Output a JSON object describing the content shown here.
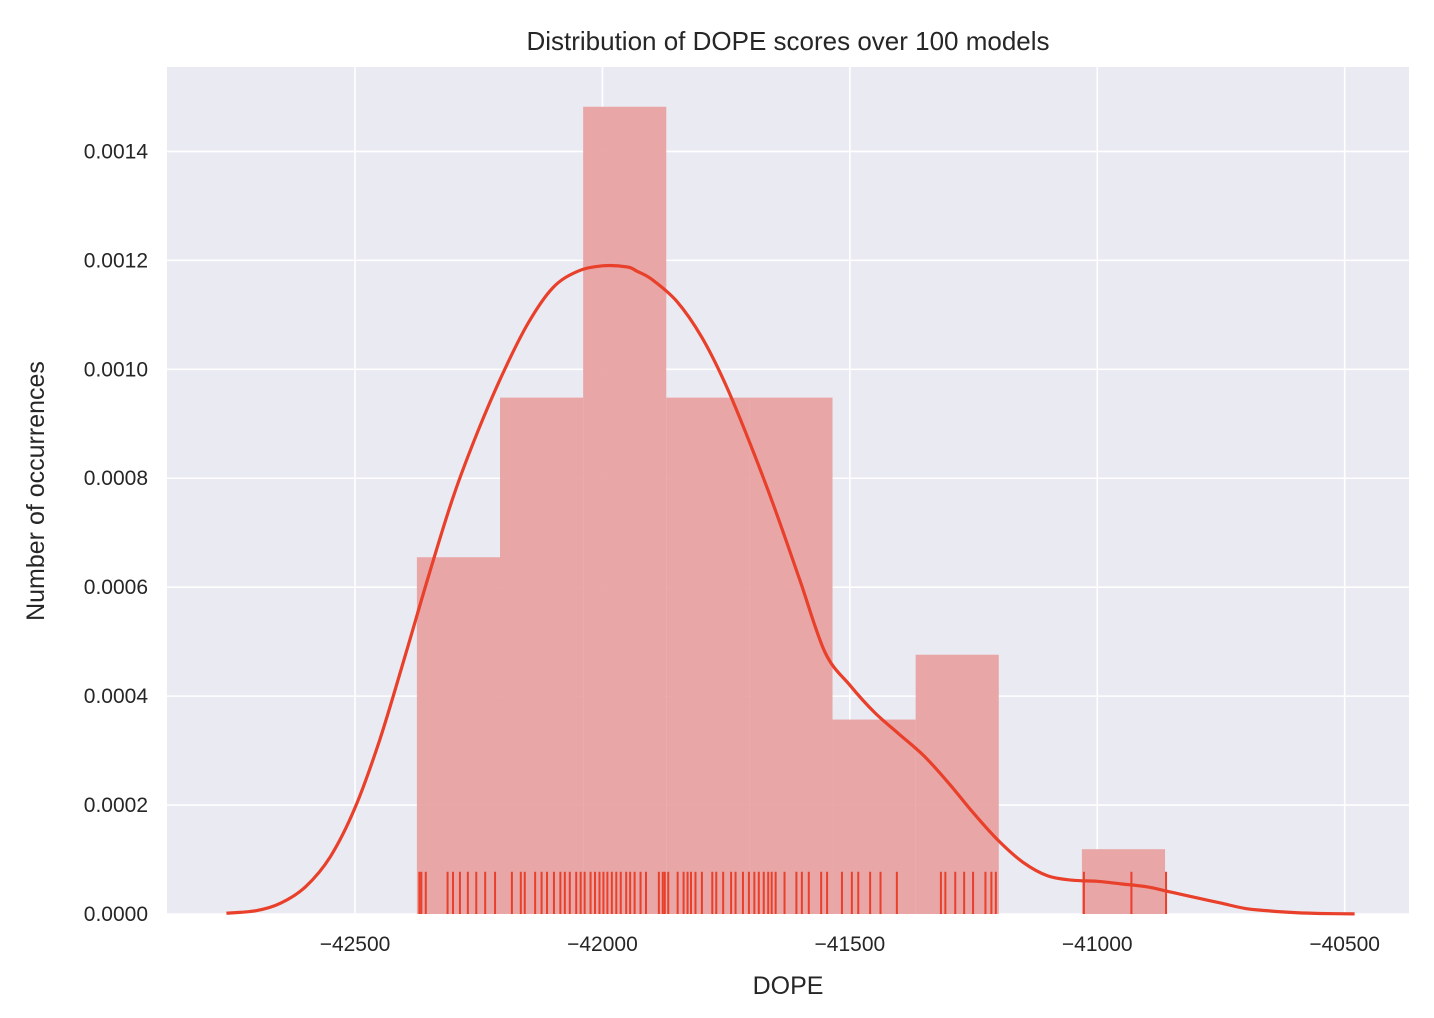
{
  "chart_data": {
    "type": "histogram",
    "title": "Distribution of DOPE scores over 100 models",
    "xlabel": "DOPE",
    "ylabel": "Number of occurrences",
    "xlim": [
      -42880,
      -40370
    ],
    "ylim": [
      0,
      0.001555
    ],
    "x_ticks": [
      -42500,
      -42000,
      -41500,
      -41000,
      -40500
    ],
    "x_tick_labels": [
      "−42500",
      "−42000",
      "−41500",
      "−41000",
      "−40500"
    ],
    "y_ticks": [
      0,
      0.0002,
      0.0004,
      0.0006,
      0.0008,
      0.001,
      0.0012,
      0.0014
    ],
    "y_tick_labels": [
      "0.0000",
      "0.0002",
      "0.0004",
      "0.0006",
      "0.0008",
      "0.0010",
      "0.0012",
      "0.0014"
    ],
    "grid": true,
    "colors": {
      "plot_background": "#eaeaf2",
      "grid": "#ffffff",
      "bar_fill": "#e8a0a0",
      "kde_line": "#e8402a",
      "rug": "#e8402a"
    },
    "histogram": {
      "bin_edges": [
        -42375,
        -42207,
        -42039,
        -41871,
        -41703,
        -41535,
        -41367,
        -41199,
        -41031,
        -40863
      ],
      "density": [
        0.000655,
        0.000948,
        0.001482,
        0.000948,
        0.000948,
        0.000357,
        0.000476,
        0.0,
        0.000119
      ]
    },
    "kde": {
      "x": [
        -42760,
        -42700,
        -42650,
        -42600,
        -42550,
        -42500,
        -42450,
        -42400,
        -42350,
        -42300,
        -42250,
        -42200,
        -42150,
        -42100,
        -42050,
        -42000,
        -41950,
        -41930,
        -41900,
        -41850,
        -41800,
        -41750,
        -41700,
        -41650,
        -41600,
        -41550,
        -41500,
        -41450,
        -41400,
        -41350,
        -41300,
        -41250,
        -41200,
        -41150,
        -41100,
        -41050,
        -41000,
        -40950,
        -40900,
        -40850,
        -40800,
        -40750,
        -40700,
        -40650,
        -40600,
        -40550,
        -40480
      ],
      "y": [
        1.5e-06,
        6e-06,
        2e-05,
        5e-05,
        0.000105,
        0.000195,
        0.00032,
        0.00047,
        0.000625,
        0.00077,
        0.00089,
        0.000995,
        0.001085,
        0.00115,
        0.00118,
        0.00119,
        0.001188,
        0.00118,
        0.001165,
        0.001125,
        0.00106,
        0.00097,
        0.00086,
        0.00074,
        0.00061,
        0.00048,
        0.00042,
        0.00037,
        0.00033,
        0.00029,
        0.00024,
        0.000185,
        0.000135,
        9.5e-05,
        7e-05,
        6.2e-05,
        6e-05,
        5.5e-05,
        5e-05,
        4e-05,
        3e-05,
        2e-05,
        1e-05,
        5.5e-06,
        2.5e-06,
        1e-06,
        2e-07
      ]
    },
    "rug": [
      -42370,
      -42366,
      -42357,
      -42313,
      -42302,
      -42288,
      -42272,
      -42255,
      -42237,
      -42217,
      -42183,
      -42165,
      -42157,
      -42136,
      -42123,
      -42112,
      -42098,
      -42085,
      -42076,
      -42066,
      -42053,
      -42044,
      -42036,
      -42024,
      -42015,
      -42006,
      -41998,
      -41990,
      -41981,
      -41972,
      -41963,
      -41952,
      -41944,
      -41935,
      -41923,
      -41912,
      -41886,
      -41878,
      -41874,
      -41867,
      -41848,
      -41836,
      -41828,
      -41821,
      -41812,
      -41799,
      -41778,
      -41770,
      -41756,
      -41740,
      -41731,
      -41716,
      -41704,
      -41693,
      -41684,
      -41674,
      -41665,
      -41658,
      -41650,
      -41632,
      -41608,
      -41597,
      -41583,
      -41558,
      -41546,
      -41516,
      -41496,
      -41483,
      -41459,
      -41438,
      -41405,
      -41316,
      -41307,
      -41287,
      -41269,
      -41251,
      -41226,
      -41214,
      -41205,
      -41027,
      -40931,
      -40861
    ]
  }
}
